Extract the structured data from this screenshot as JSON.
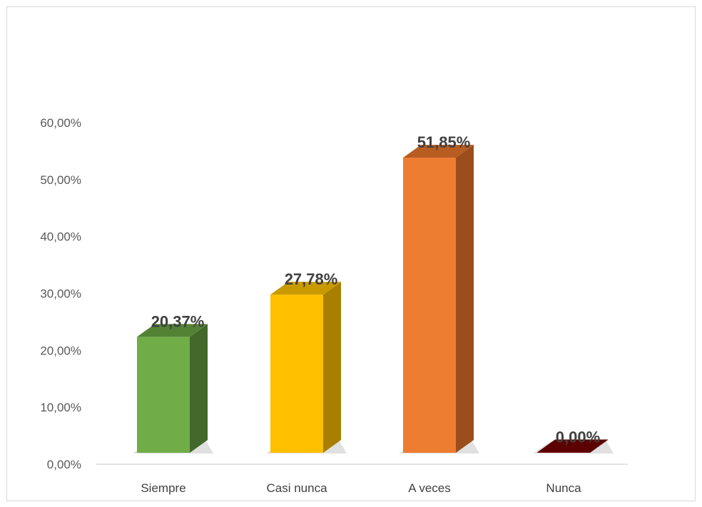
{
  "chart_data": {
    "type": "bar",
    "categories": [
      "Siempre",
      "Casi nunca",
      "A veces",
      "Nunca"
    ],
    "values": [
      20.37,
      27.78,
      51.85,
      0.0
    ],
    "data_labels": [
      "20,37%",
      "27,78%",
      "51,85%",
      "0,00%"
    ],
    "title": "",
    "xlabel": "",
    "ylabel": "",
    "ylim": [
      0,
      60
    ],
    "y_ticks": [
      0,
      10,
      20,
      30,
      40,
      50,
      60
    ],
    "y_tick_labels": [
      "0,00%",
      "10,00%",
      "20,00%",
      "30,00%",
      "40,00%",
      "50,00%",
      "60,00%"
    ],
    "grid": false,
    "legend": "none",
    "style": "3d-column",
    "colors": [
      {
        "front": "#70ad47",
        "top": "#548235",
        "side": "#43682b"
      },
      {
        "front": "#ffc000",
        "top": "#c99a00",
        "side": "#a87f00"
      },
      {
        "front": "#ed7d31",
        "top": "#b85d22",
        "side": "#9b4e1c"
      },
      {
        "front": "#8b0000",
        "top": "#5c0000",
        "side": "#3a0000"
      }
    ]
  }
}
